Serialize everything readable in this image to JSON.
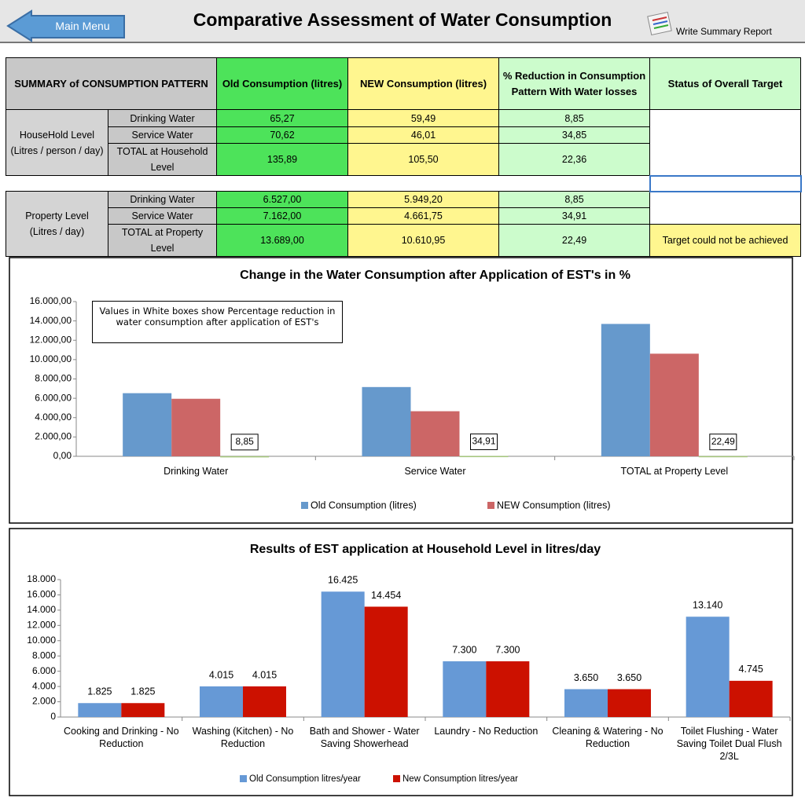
{
  "header": {
    "menu_button": "Main Menu",
    "title": "Comparative Assessment of Water Consumption",
    "report_link": "Write Summary Report"
  },
  "table": {
    "header": [
      "SUMMARY of CONSUMPTION PATTERN",
      "Old Consumption (litres)",
      "NEW Consumption (litres)",
      "% Reduction in Consumption Pattern With Water losses",
      "Status of Overall Target"
    ],
    "groups": [
      {
        "label": "HouseHold Level\n(Litres / person / day)",
        "rows": [
          [
            "Drinking Water",
            "65,27",
            "59,49",
            "8,85"
          ],
          [
            "Service Water",
            "70,62",
            "46,01",
            "34,85"
          ],
          [
            "TOTAL at Household Level",
            "135,89",
            "105,50",
            "22,36"
          ]
        ]
      },
      {
        "label": "Property Level\n(Litres / day)",
        "rows": [
          [
            "Drinking Water",
            "6.527,00",
            "5.949,20",
            "8,85"
          ],
          [
            "Service Water",
            "7.162,00",
            "4.661,75",
            "34,91"
          ],
          [
            "TOTAL at Property Level",
            "13.689,00",
            "10.610,95",
            "22,49"
          ]
        ],
        "status": "Target could not be achieved"
      }
    ]
  },
  "chart_data": [
    {
      "type": "bar",
      "title": "Change in the Water Consumption  after Application of EST's in %",
      "annotation": "Values in White boxes show Percentage reduction in water consumption after application of EST's",
      "categories": [
        "Drinking Water",
        "Service Water",
        "TOTAL at Property Level"
      ],
      "series": [
        {
          "name": "Old Consumption (litres)",
          "color": "#6699cc",
          "values": [
            6527,
            7162,
            13689
          ]
        },
        {
          "name": "NEW Consumption (litres)",
          "color": "#cc6666",
          "values": [
            5949.2,
            4661.75,
            10610.95
          ]
        },
        {
          "color": "#a6c77c",
          "values": [
            8.85,
            34.91,
            22.49
          ],
          "value_labels": [
            "8,85",
            "34,91",
            "22,49"
          ]
        }
      ],
      "ylim": [
        0,
        16000
      ],
      "yticks": [
        {
          "value": 0,
          "label": "0,00"
        },
        {
          "value": 2000,
          "label": "2.000,00"
        },
        {
          "value": 4000,
          "label": "4.000,00"
        },
        {
          "value": 6000,
          "label": "6.000,00"
        },
        {
          "value": 8000,
          "label": "8.000,00"
        },
        {
          "value": 10000,
          "label": "10.000,00"
        },
        {
          "value": 12000,
          "label": "12.000,00"
        },
        {
          "value": 14000,
          "label": "14.000,00"
        },
        {
          "value": 16000,
          "label": "16.000,00"
        }
      ],
      "legend": "bottom"
    },
    {
      "type": "bar",
      "title": "Results of EST application at Household Level in litres/day",
      "categories": [
        "Cooking and Drinking - No Reduction",
        "Washing (Kitchen) - No Reduction",
        "Bath and Shower - Water Saving Showerhead",
        "Laundry - No Reduction",
        "Cleaning & Watering - No Reduction",
        "Toilet Flushing - Water Saving Toilet Dual Flush 2/3L"
      ],
      "series": [
        {
          "name": "Old Consumption litres/year",
          "color": "#6699d6",
          "values": [
            1825,
            4015,
            16425,
            7300,
            3650,
            13140
          ],
          "value_labels": [
            "1.825",
            "4.015",
            "16.425",
            "7.300",
            "3.650",
            "13.140"
          ]
        },
        {
          "name": "New Consumption litres/year",
          "color": "#cc1100",
          "values": [
            1825,
            4015,
            14454,
            7300,
            3650,
            4745
          ],
          "value_labels": [
            "1.825",
            "4.015",
            "14.454",
            "7.300",
            "3.650",
            "4.745"
          ]
        }
      ],
      "ylim": [
        0,
        18000
      ],
      "yticks": [
        0,
        {
          "value": 2000,
          "label": "2.000"
        },
        {
          "value": 4000,
          "label": "4.000"
        },
        {
          "value": 6000,
          "label": "6.000"
        },
        {
          "value": 8000,
          "label": "8.000"
        },
        {
          "value": 10000,
          "label": "10.000"
        },
        {
          "value": 12000,
          "label": "12.000"
        },
        {
          "value": 14000,
          "label": "14.000"
        },
        {
          "value": 16000,
          "label": "16.000"
        },
        {
          "value": 18000,
          "label": "18.000"
        }
      ],
      "legend": "bottom"
    }
  ]
}
